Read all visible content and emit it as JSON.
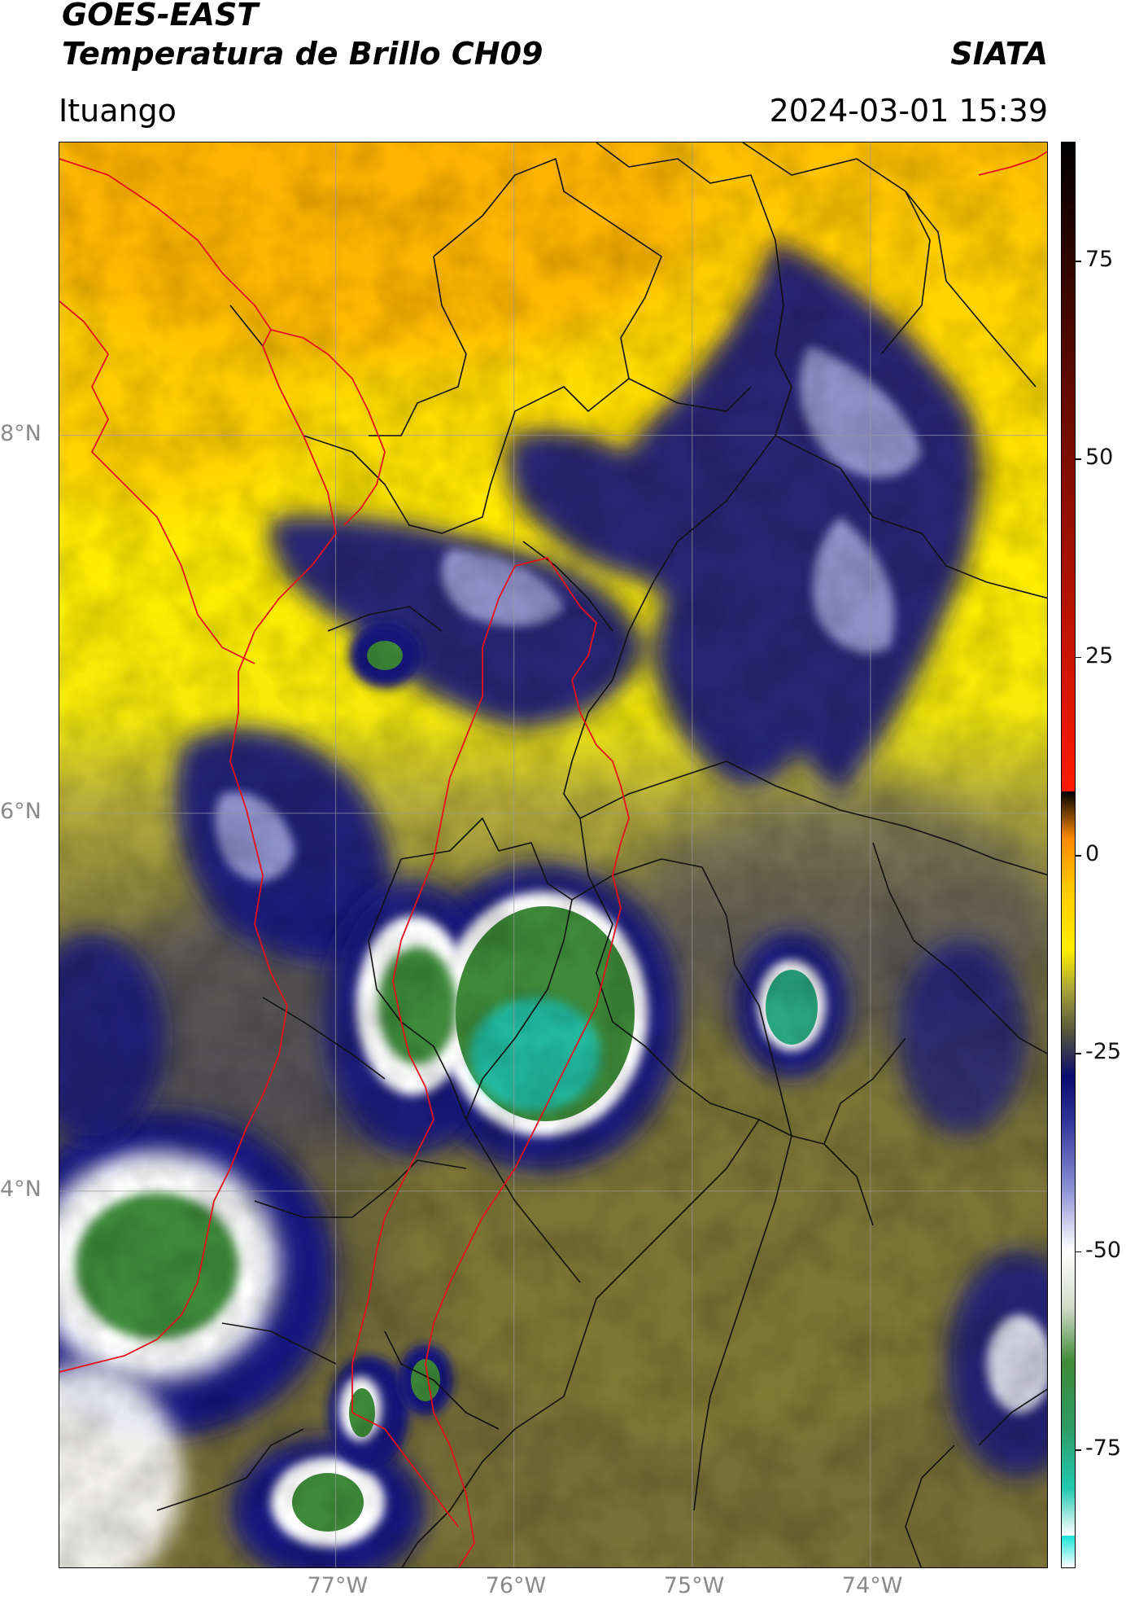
{
  "header": {
    "satellite": "GOES-EAST",
    "product": "Temperatura de Brillo CH09",
    "institution": "SIATA",
    "region": "Ituango",
    "timestamp": "2024-03-01 15:39"
  },
  "map": {
    "lat_ticks": [
      {
        "label": "8°N",
        "value": 8
      },
      {
        "label": "6°N",
        "value": 6
      },
      {
        "label": "4°N",
        "value": 4
      }
    ],
    "lon_ticks": [
      {
        "label": "77°W",
        "value": -77
      },
      {
        "label": "76°W",
        "value": -76
      },
      {
        "label": "75°W",
        "value": -75
      },
      {
        "label": "74°W",
        "value": -74
      }
    ],
    "extent": {
      "lon_min": -78.55,
      "lon_max": -73.0,
      "lat_min": 2.0,
      "lat_max": 9.55
    },
    "grid": true,
    "boundary_colors": {
      "department": "#000000",
      "highlight": "#e8101a"
    }
  },
  "colorbar": {
    "range": [
      -90,
      90
    ],
    "ticks": [
      {
        "label": "75",
        "value": 75
      },
      {
        "label": "50",
        "value": 50
      },
      {
        "label": "25",
        "value": 25
      },
      {
        "label": "0",
        "value": 0
      },
      {
        "label": "-25",
        "value": -25
      },
      {
        "label": "-50",
        "value": -50
      },
      {
        "label": "-75",
        "value": -75
      }
    ],
    "stops": [
      {
        "value": -90,
        "color": "#ffffff"
      },
      {
        "value": -86,
        "color": "#ffffff"
      },
      {
        "value": -86,
        "color": "#18e4d6"
      },
      {
        "value": -80,
        "color": "#22c8b0"
      },
      {
        "value": -72,
        "color": "#2f9a62"
      },
      {
        "value": -64,
        "color": "#3e8a36"
      },
      {
        "value": -57,
        "color": "#d6dccc"
      },
      {
        "value": -50,
        "color": "#ffffff"
      },
      {
        "value": -42,
        "color": "#8a8ed4"
      },
      {
        "value": -33,
        "color": "#2b2f94"
      },
      {
        "value": -28,
        "color": "#0a0a6e"
      },
      {
        "value": -22,
        "color": "#5a5a3a"
      },
      {
        "value": -17,
        "color": "#a8a43a"
      },
      {
        "value": -12,
        "color": "#ffee00"
      },
      {
        "value": -4,
        "color": "#ffc800"
      },
      {
        "value": 2,
        "color": "#ff8a00"
      },
      {
        "value": 8,
        "color": "#ff1a00"
      },
      {
        "value": 8,
        "color": "#000000"
      },
      {
        "value": 90,
        "color": "#000000"
      }
    ]
  }
}
